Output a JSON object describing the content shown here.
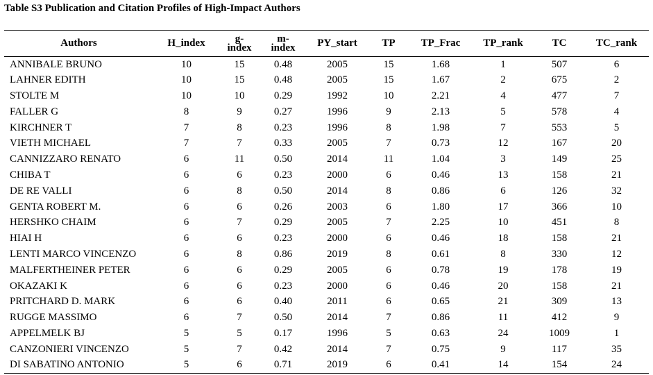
{
  "caption": "Table S3 Publication and Citation Profiles of High-Impact Authors",
  "columns": [
    "Authors",
    "H_index",
    "g-index",
    "m-index",
    "PY_start",
    "TP",
    "TP_Frac",
    "TP_rank",
    "TC",
    "TC_rank"
  ],
  "header_lines": {
    "g": [
      "g-",
      "index"
    ],
    "m": [
      "m-",
      "index"
    ]
  },
  "rows": [
    [
      "ANNIBALE BRUNO",
      "10",
      "15",
      "0.48",
      "2005",
      "15",
      "1.68",
      "1",
      "507",
      "6"
    ],
    [
      "LAHNER EDITH",
      "10",
      "15",
      "0.48",
      "2005",
      "15",
      "1.67",
      "2",
      "675",
      "2"
    ],
    [
      "STOLTE M",
      "10",
      "10",
      "0.29",
      "1992",
      "10",
      "2.21",
      "4",
      "477",
      "7"
    ],
    [
      "FALLER G",
      "8",
      "9",
      "0.27",
      "1996",
      "9",
      "2.13",
      "5",
      "578",
      "4"
    ],
    [
      "KIRCHNER T",
      "7",
      "8",
      "0.23",
      "1996",
      "8",
      "1.98",
      "7",
      "553",
      "5"
    ],
    [
      "VIETH MICHAEL",
      "7",
      "7",
      "0.33",
      "2005",
      "7",
      "0.73",
      "12",
      "167",
      "20"
    ],
    [
      "CANNIZZARO RENATO",
      "6",
      "11",
      "0.50",
      "2014",
      "11",
      "1.04",
      "3",
      "149",
      "25"
    ],
    [
      "CHIBA T",
      "6",
      "6",
      "0.23",
      "2000",
      "6",
      "0.46",
      "13",
      "158",
      "21"
    ],
    [
      "DE RE VALLI",
      "6",
      "8",
      "0.50",
      "2014",
      "8",
      "0.86",
      "6",
      "126",
      "32"
    ],
    [
      "GENTA ROBERT M.",
      "6",
      "6",
      "0.26",
      "2003",
      "6",
      "1.80",
      "17",
      "366",
      "10"
    ],
    [
      "HERSHKO CHAIM",
      "6",
      "7",
      "0.29",
      "2005",
      "7",
      "2.25",
      "10",
      "451",
      "8"
    ],
    [
      "HIAI H",
      "6",
      "6",
      "0.23",
      "2000",
      "6",
      "0.46",
      "18",
      "158",
      "21"
    ],
    [
      "LENTI MARCO VINCENZO",
      "6",
      "8",
      "0.86",
      "2019",
      "8",
      "0.61",
      "8",
      "330",
      "12"
    ],
    [
      "MALFERTHEINER PETER",
      "6",
      "6",
      "0.29",
      "2005",
      "6",
      "0.78",
      "19",
      "178",
      "19"
    ],
    [
      "OKAZAKI K",
      "6",
      "6",
      "0.23",
      "2000",
      "6",
      "0.46",
      "20",
      "158",
      "21"
    ],
    [
      "PRITCHARD D. MARK",
      "6",
      "6",
      "0.40",
      "2011",
      "6",
      "0.65",
      "21",
      "309",
      "13"
    ],
    [
      "RUGGE MASSIMO",
      "6",
      "7",
      "0.50",
      "2014",
      "7",
      "0.86",
      "11",
      "412",
      "9"
    ],
    [
      "APPELMELK BJ",
      "5",
      "5",
      "0.17",
      "1996",
      "5",
      "0.63",
      "24",
      "1009",
      "1"
    ],
    [
      "CANZONIERI VINCENZO",
      "5",
      "7",
      "0.42",
      "2014",
      "7",
      "0.75",
      "9",
      "117",
      "35"
    ],
    [
      "DI SABATINO ANTONIO",
      "5",
      "6",
      "0.71",
      "2019",
      "6",
      "0.41",
      "14",
      "154",
      "24"
    ]
  ]
}
